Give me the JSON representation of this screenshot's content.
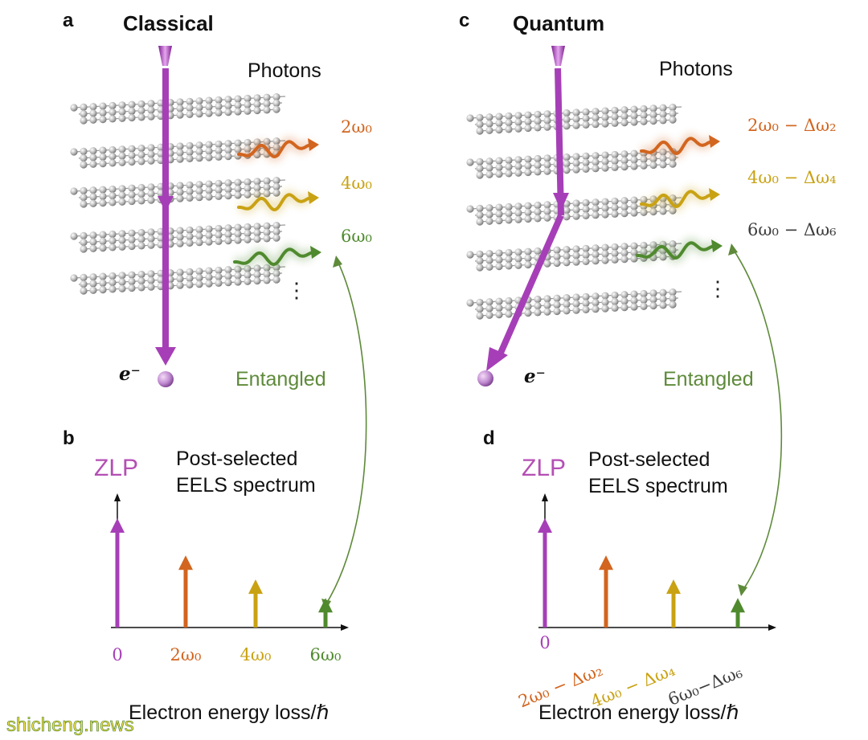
{
  "watermark": "shicheng.news",
  "colors": {
    "electron": "#a63fb7",
    "orange": "#d2651f",
    "yellow": "#c9a214",
    "green": "#4f8a2e",
    "gray_text": "#3c3c3c",
    "entangled": "#5e8a3a",
    "zlp": "#b44fb4"
  },
  "panel_a": {
    "letter": "a",
    "title": "Classical",
    "photons_label": "Photons",
    "photon_labels": [
      "2ω₀",
      "4ω₀",
      "6ω₀"
    ],
    "dots": "⋮",
    "electron_label": "e⁻",
    "entangled_label": "Entangled"
  },
  "panel_b": {
    "letter": "b",
    "zlp_label": "ZLP",
    "spectrum_title_line1": "Post-selected",
    "spectrum_title_line2": "EELS spectrum",
    "tick_labels": [
      "0",
      "2ω₀",
      "4ω₀",
      "6ω₀"
    ],
    "xlabel": "Electron energy loss/ℏ",
    "relative_heights": [
      1.0,
      0.66,
      0.44,
      0.27
    ]
  },
  "panel_c": {
    "letter": "c",
    "title": "Quantum",
    "photons_label": "Photons",
    "photon_labels": [
      "2ω₀ − Δω₂",
      "4ω₀ − Δω₄",
      "6ω₀ − Δω₆"
    ],
    "dots": "⋮",
    "electron_label": "e⁻",
    "entangled_label": "Entangled"
  },
  "panel_d": {
    "letter": "d",
    "zlp_label": "ZLP",
    "spectrum_title_line1": "Post-selected",
    "spectrum_title_line2": "EELS spectrum",
    "tick_labels": [
      "0",
      "2ω₀ − Δω₂",
      "4ω₀ − Δω₄",
      "6ω₀−Δω₆"
    ],
    "xlabel": "Electron energy loss/ℏ",
    "relative_heights": [
      1.0,
      0.66,
      0.44,
      0.27
    ]
  }
}
